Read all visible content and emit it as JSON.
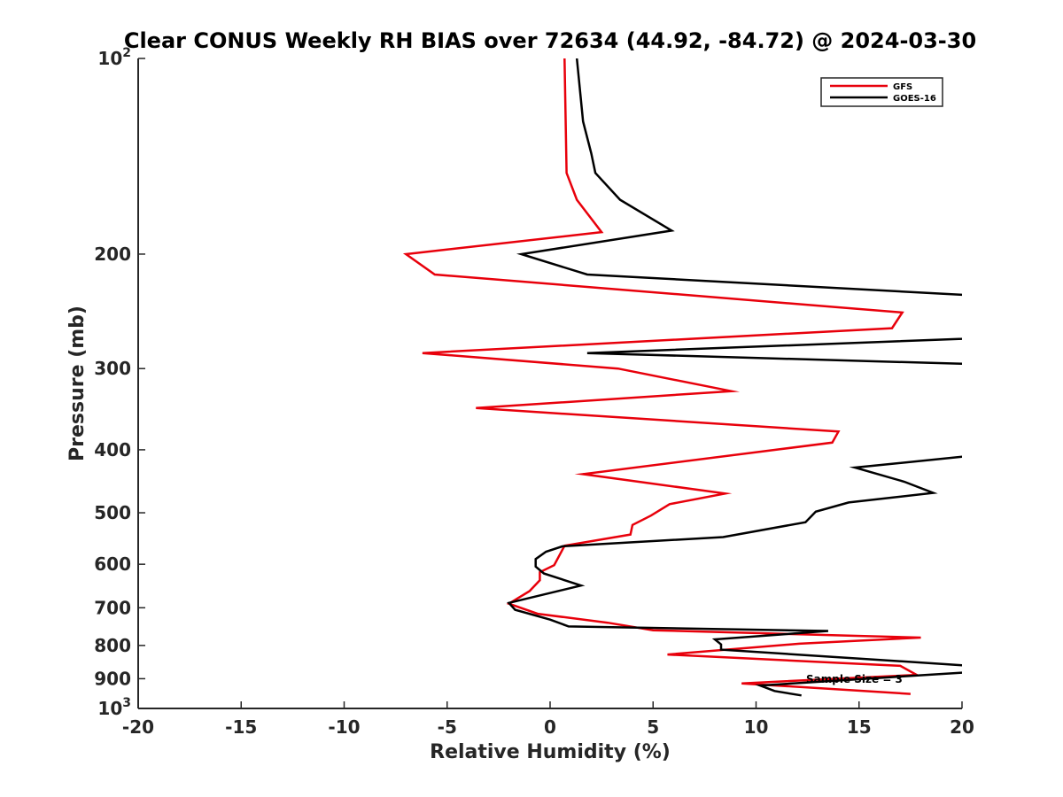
{
  "chart_data": {
    "type": "line",
    "title": "Clear CONUS Weekly RH BIAS over 72634 (44.92, -84.72) @ 2024-03-30",
    "xlabel": "Relative Humidity (%)",
    "ylabel": "Pressure (mb)",
    "xlim": [
      -20,
      20
    ],
    "ylim": [
      100,
      1000
    ],
    "yscale": "log",
    "y_direction": "reverse",
    "x_ticks": [
      "-20",
      "-15",
      "-10",
      "-5",
      "0",
      "5",
      "10",
      "15",
      "20"
    ],
    "y_ticks": [
      {
        "value": 100,
        "base": "10",
        "exp": "2"
      },
      {
        "value": 200,
        "label": "200"
      },
      {
        "value": 300,
        "label": "300"
      },
      {
        "value": 400,
        "label": "400"
      },
      {
        "value": 500,
        "label": "500"
      },
      {
        "value": 600,
        "label": "600"
      },
      {
        "value": 700,
        "label": "700"
      },
      {
        "value": 800,
        "label": "800"
      },
      {
        "value": 900,
        "label": "900"
      },
      {
        "value": 1000,
        "base": "10",
        "exp": "3"
      }
    ],
    "legend_position": "top-right",
    "annotation": "Sample Size = 3",
    "series": [
      {
        "name": "GFS",
        "color": "#e8000b",
        "points": [
          {
            "x": 0.7,
            "y": 100
          },
          {
            "x": 0.8,
            "y": 150
          },
          {
            "x": 1.3,
            "y": 165
          },
          {
            "x": 2.5,
            "y": 185
          },
          {
            "x": -7.0,
            "y": 200
          },
          {
            "x": -5.6,
            "y": 215
          },
          {
            "x": 17.1,
            "y": 246
          },
          {
            "x": 16.6,
            "y": 260
          },
          {
            "x": -6.2,
            "y": 284
          },
          {
            "x": 3.3,
            "y": 300
          },
          {
            "x": 8.8,
            "y": 325
          },
          {
            "x": -3.6,
            "y": 345
          },
          {
            "x": 14.0,
            "y": 375
          },
          {
            "x": 13.7,
            "y": 390
          },
          {
            "x": 1.6,
            "y": 436
          },
          {
            "x": 8.5,
            "y": 467
          },
          {
            "x": 5.8,
            "y": 485
          },
          {
            "x": 4.9,
            "y": 505
          },
          {
            "x": 4.0,
            "y": 522
          },
          {
            "x": 3.9,
            "y": 540
          },
          {
            "x": 0.7,
            "y": 562
          },
          {
            "x": 0.2,
            "y": 602
          },
          {
            "x": -0.5,
            "y": 617
          },
          {
            "x": -0.5,
            "y": 635
          },
          {
            "x": -1.0,
            "y": 660
          },
          {
            "x": -2.0,
            "y": 690
          },
          {
            "x": -0.6,
            "y": 715
          },
          {
            "x": 2.8,
            "y": 738
          },
          {
            "x": 5.0,
            "y": 758
          },
          {
            "x": 18.0,
            "y": 778
          },
          {
            "x": 12.1,
            "y": 795
          },
          {
            "x": 5.7,
            "y": 826
          },
          {
            "x": 17.0,
            "y": 860
          },
          {
            "x": 17.8,
            "y": 888
          },
          {
            "x": 9.3,
            "y": 915
          },
          {
            "x": 17.5,
            "y": 950
          }
        ]
      },
      {
        "name": "GOES-16",
        "color": "#000000",
        "points": [
          {
            "x": 1.3,
            "y": 100
          },
          {
            "x": 1.6,
            "y": 125
          },
          {
            "x": 2.0,
            "y": 140
          },
          {
            "x": 2.2,
            "y": 150
          },
          {
            "x": 3.4,
            "y": 165
          },
          {
            "x": 5.9,
            "y": 184
          },
          {
            "x": -1.4,
            "y": 200
          },
          {
            "x": 1.8,
            "y": 215
          },
          {
            "x": 20.0,
            "y": 231
          },
          {
            "x": 20.5,
            "y": 233
          },
          {
            "x": 20.5,
            "y": 269
          },
          {
            "x": 20.0,
            "y": 270
          },
          {
            "x": 1.8,
            "y": 284
          },
          {
            "x": 20.0,
            "y": 295
          },
          {
            "x": 20.5,
            "y": 296
          },
          {
            "x": 20.5,
            "y": 409
          },
          {
            "x": 20.0,
            "y": 410
          },
          {
            "x": 14.8,
            "y": 426
          },
          {
            "x": 17.2,
            "y": 448
          },
          {
            "x": 18.6,
            "y": 466
          },
          {
            "x": 14.5,
            "y": 482
          },
          {
            "x": 12.9,
            "y": 498
          },
          {
            "x": 12.4,
            "y": 517
          },
          {
            "x": 8.4,
            "y": 545
          },
          {
            "x": 0.6,
            "y": 563
          },
          {
            "x": -0.2,
            "y": 574
          },
          {
            "x": -0.7,
            "y": 589
          },
          {
            "x": -0.7,
            "y": 605
          },
          {
            "x": -0.3,
            "y": 620
          },
          {
            "x": 1.5,
            "y": 647
          },
          {
            "x": -2.0,
            "y": 688
          },
          {
            "x": -1.7,
            "y": 705
          },
          {
            "x": 0.0,
            "y": 730
          },
          {
            "x": 0.9,
            "y": 748
          },
          {
            "x": 13.5,
            "y": 760
          },
          {
            "x": 8.0,
            "y": 783
          },
          {
            "x": 8.3,
            "y": 797
          },
          {
            "x": 8.3,
            "y": 812
          },
          {
            "x": 20.0,
            "y": 858
          },
          {
            "x": 20.5,
            "y": 860
          },
          {
            "x": 20.5,
            "y": 880
          },
          {
            "x": 20.0,
            "y": 881
          },
          {
            "x": 10.2,
            "y": 922
          },
          {
            "x": 10.9,
            "y": 940
          },
          {
            "x": 12.2,
            "y": 955
          }
        ]
      }
    ]
  }
}
